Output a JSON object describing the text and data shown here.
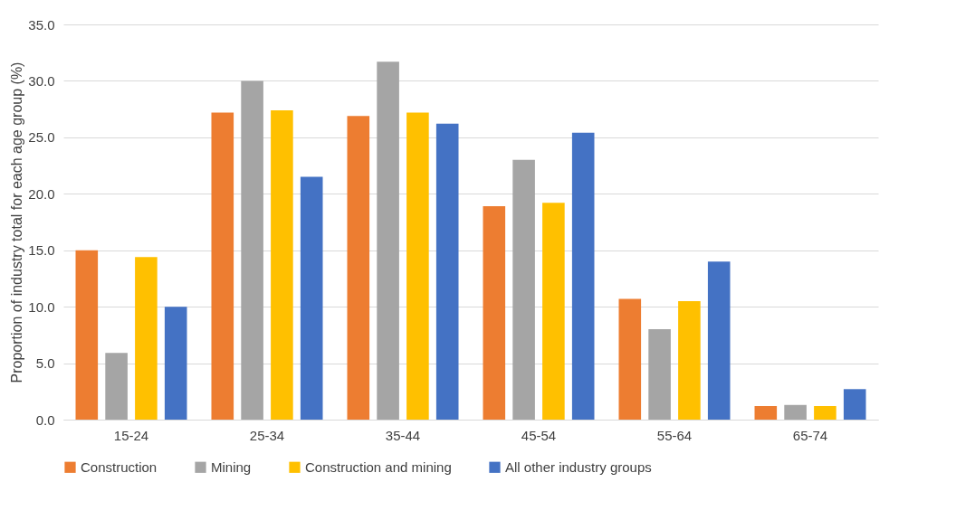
{
  "chart_data": {
    "type": "bar",
    "ylabel": "Proportion of industry total for each age group (%)",
    "categories": [
      "15-24",
      "25-34",
      "35-44",
      "45-54",
      "55-64",
      "65-74"
    ],
    "series": [
      {
        "name": "Construction",
        "color": "#ed7d31",
        "values": [
          15.0,
          27.2,
          26.9,
          18.9,
          10.7,
          1.2
        ]
      },
      {
        "name": "Mining",
        "color": "#a5a5a5",
        "values": [
          5.9,
          30.0,
          31.7,
          23.0,
          8.0,
          1.3
        ]
      },
      {
        "name": "Construction and mining",
        "color": "#ffc000",
        "values": [
          14.4,
          27.4,
          27.2,
          19.2,
          10.5,
          1.2
        ]
      },
      {
        "name": "All other industry groups",
        "color": "#4472c4",
        "values": [
          10.0,
          21.5,
          26.2,
          25.4,
          14.0,
          2.7
        ]
      }
    ],
    "ylim": [
      0,
      35
    ],
    "yticks": [
      {
        "value": 0,
        "label": "0.0"
      },
      {
        "value": 5,
        "label": "5.0"
      },
      {
        "value": 10,
        "label": "10.0"
      },
      {
        "value": 15,
        "label": "15.0"
      },
      {
        "value": 20,
        "label": "20.0"
      },
      {
        "value": 25,
        "label": "25.0"
      },
      {
        "value": 30,
        "label": "30.0"
      },
      {
        "value": 35,
        "label": "35.0"
      }
    ],
    "grid": "y",
    "legend": "bottom"
  }
}
